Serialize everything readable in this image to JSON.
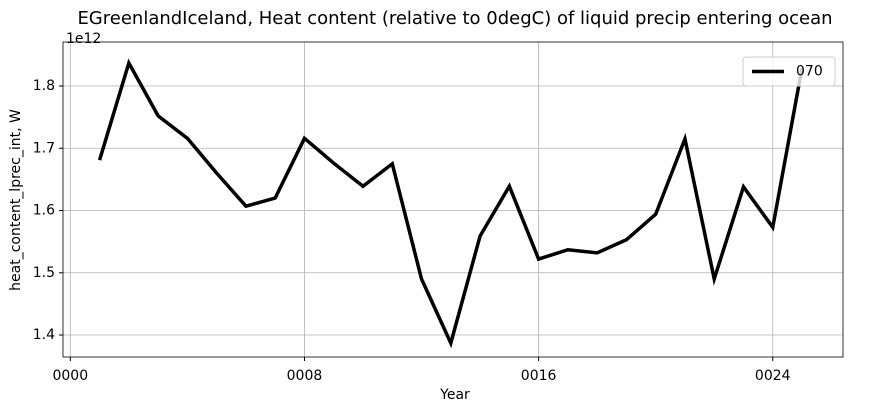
{
  "chart_data": {
    "type": "line",
    "title": "EGreenlandIceland, Heat content (relative to 0degC) of liquid precip entering ocean",
    "x_label": "Year",
    "y_label": "heat_content_lprec_int, W",
    "y_offset_label": "1e12",
    "x": [
      1,
      2,
      3,
      4,
      5,
      6,
      7,
      8,
      9,
      10,
      11,
      12,
      13,
      14,
      15,
      16,
      17,
      18,
      19,
      20,
      21,
      22,
      23,
      24,
      25
    ],
    "series": [
      {
        "name": "070",
        "color": "#000000",
        "values": [
          1.681,
          1.837,
          1.752,
          1.716,
          1.66,
          1.607,
          1.62,
          1.716,
          1.676,
          1.639,
          1.675,
          1.49,
          1.387,
          1.559,
          1.639,
          1.522,
          1.537,
          1.532,
          1.553,
          1.594,
          1.715,
          1.49,
          1.638,
          1.573,
          1.829
        ]
      }
    ],
    "xlim": [
      -0.25,
      26.4
    ],
    "ylim": [
      1.3647,
      1.8707
    ],
    "xticks": [
      {
        "value": 0,
        "label": "0000"
      },
      {
        "value": 8,
        "label": "0008"
      },
      {
        "value": 16,
        "label": "0016"
      },
      {
        "value": 24,
        "label": "0024"
      }
    ],
    "yticks": [
      1.4,
      1.5,
      1.6,
      1.7,
      1.8
    ],
    "grid": true,
    "legend": "upper right"
  }
}
